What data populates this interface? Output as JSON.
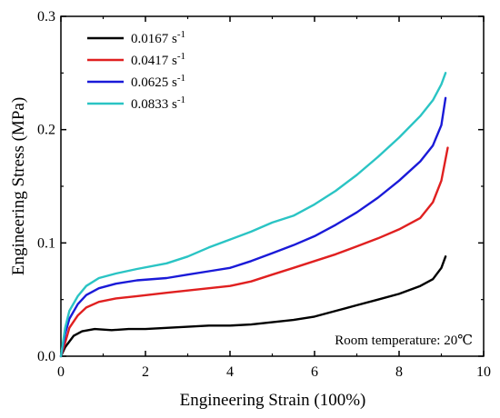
{
  "chart_data": {
    "type": "line",
    "xlabel": "Engineering Strain (100%)",
    "ylabel": "Engineering Stress (MPa)",
    "xlim": [
      0,
      10
    ],
    "ylim": [
      0,
      0.3
    ],
    "x_ticks": [
      "0",
      "2",
      "4",
      "6",
      "8",
      "10"
    ],
    "y_ticks": [
      "0.0",
      "0.1",
      "0.2",
      "0.3"
    ],
    "grid": false,
    "legend_position": "top-left",
    "annotation": "Room temperature: 20℃",
    "series": [
      {
        "name": "0.0167 s",
        "name_sup": "-1",
        "color": "#000000",
        "x": [
          0,
          0.1,
          0.3,
          0.5,
          0.8,
          1.2,
          1.6,
          2.0,
          2.5,
          3.0,
          3.5,
          4.0,
          4.5,
          5.0,
          5.5,
          6.0,
          6.5,
          7.0,
          7.5,
          8.0,
          8.5,
          8.8,
          9.0,
          9.1
        ],
        "y": [
          0,
          0.008,
          0.018,
          0.022,
          0.024,
          0.023,
          0.024,
          0.024,
          0.025,
          0.026,
          0.027,
          0.027,
          0.028,
          0.03,
          0.032,
          0.035,
          0.04,
          0.045,
          0.05,
          0.055,
          0.062,
          0.068,
          0.078,
          0.088
        ]
      },
      {
        "name": "0.0417 s",
        "name_sup": "-1",
        "color": "#e02020",
        "x": [
          0,
          0.1,
          0.2,
          0.4,
          0.6,
          0.9,
          1.3,
          1.8,
          2.5,
          3.0,
          3.5,
          4.0,
          4.5,
          5.0,
          5.5,
          6.0,
          6.5,
          7.0,
          7.5,
          8.0,
          8.5,
          8.8,
          9.0,
          9.15
        ],
        "y": [
          0,
          0.012,
          0.025,
          0.036,
          0.043,
          0.048,
          0.051,
          0.053,
          0.056,
          0.058,
          0.06,
          0.062,
          0.066,
          0.072,
          0.078,
          0.084,
          0.09,
          0.097,
          0.104,
          0.112,
          0.122,
          0.136,
          0.155,
          0.184
        ]
      },
      {
        "name": "0.0625 s",
        "name_sup": "-1",
        "color": "#1a1ad8",
        "x": [
          0,
          0.1,
          0.2,
          0.4,
          0.6,
          0.9,
          1.3,
          1.8,
          2.5,
          3.0,
          3.5,
          4.0,
          4.5,
          5.0,
          5.5,
          6.0,
          6.5,
          7.0,
          7.5,
          8.0,
          8.5,
          8.8,
          9.0,
          9.1
        ],
        "y": [
          0,
          0.02,
          0.033,
          0.046,
          0.054,
          0.06,
          0.064,
          0.067,
          0.069,
          0.072,
          0.075,
          0.078,
          0.084,
          0.091,
          0.098,
          0.106,
          0.116,
          0.127,
          0.14,
          0.155,
          0.172,
          0.186,
          0.204,
          0.228
        ]
      },
      {
        "name": "0.0833 s",
        "name_sup": "-1",
        "color": "#2ac4c4",
        "x": [
          0,
          0.1,
          0.2,
          0.4,
          0.6,
          0.9,
          1.3,
          1.8,
          2.5,
          3.0,
          3.5,
          4.0,
          4.5,
          5.0,
          5.5,
          6.0,
          6.5,
          7.0,
          7.5,
          8.0,
          8.5,
          8.8,
          9.0,
          9.1
        ],
        "y": [
          0,
          0.025,
          0.04,
          0.053,
          0.062,
          0.069,
          0.073,
          0.077,
          0.082,
          0.088,
          0.096,
          0.103,
          0.11,
          0.118,
          0.124,
          0.134,
          0.146,
          0.16,
          0.176,
          0.193,
          0.212,
          0.226,
          0.24,
          0.25
        ]
      }
    ]
  }
}
